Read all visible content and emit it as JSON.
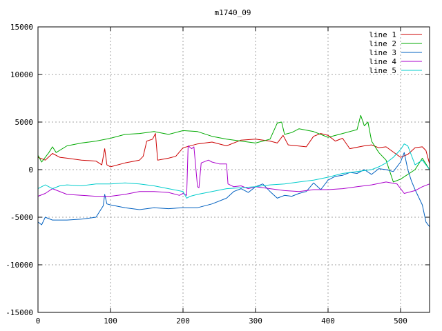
{
  "chart_data": {
    "type": "line",
    "title": "m1740_09",
    "xlabel": "",
    "ylabel": "",
    "xlim": [
      0,
      540
    ],
    "ylim": [
      -15000,
      15000
    ],
    "x_ticks": [
      0,
      100,
      200,
      300,
      400,
      500
    ],
    "y_ticks": [
      -15000,
      -10000,
      -5000,
      0,
      5000,
      10000,
      15000
    ],
    "grid": true,
    "legend_position": "top-right",
    "series": [
      {
        "name": "line 1",
        "color": "#cc0000",
        "points": [
          [
            0,
            1300
          ],
          [
            10,
            1000
          ],
          [
            20,
            1700
          ],
          [
            30,
            1300
          ],
          [
            40,
            1200
          ],
          [
            60,
            1000
          ],
          [
            80,
            900
          ],
          [
            88,
            500
          ],
          [
            92,
            2200
          ],
          [
            95,
            500
          ],
          [
            100,
            300
          ],
          [
            120,
            700
          ],
          [
            140,
            1000
          ],
          [
            145,
            1400
          ],
          [
            150,
            3000
          ],
          [
            158,
            3200
          ],
          [
            162,
            3800
          ],
          [
            165,
            1000
          ],
          [
            180,
            1200
          ],
          [
            190,
            1400
          ],
          [
            200,
            2300
          ],
          [
            220,
            2700
          ],
          [
            240,
            2900
          ],
          [
            260,
            2500
          ],
          [
            280,
            3100
          ],
          [
            300,
            3200
          ],
          [
            320,
            3000
          ],
          [
            330,
            2800
          ],
          [
            338,
            3600
          ],
          [
            345,
            2600
          ],
          [
            370,
            2400
          ],
          [
            380,
            3500
          ],
          [
            390,
            3800
          ],
          [
            400,
            3600
          ],
          [
            410,
            3000
          ],
          [
            420,
            3300
          ],
          [
            430,
            2200
          ],
          [
            450,
            2500
          ],
          [
            460,
            2600
          ],
          [
            470,
            2300
          ],
          [
            480,
            2400
          ],
          [
            500,
            1300
          ],
          [
            510,
            1600
          ],
          [
            520,
            2300
          ],
          [
            530,
            2400
          ],
          [
            535,
            2000
          ],
          [
            540,
            600
          ]
        ]
      },
      {
        "name": "line 2",
        "color": "#00aa00",
        "points": [
          [
            0,
            1500
          ],
          [
            5,
            800
          ],
          [
            15,
            1800
          ],
          [
            20,
            2400
          ],
          [
            25,
            1800
          ],
          [
            40,
            2500
          ],
          [
            60,
            2800
          ],
          [
            80,
            3000
          ],
          [
            100,
            3300
          ],
          [
            120,
            3700
          ],
          [
            140,
            3800
          ],
          [
            160,
            4000
          ],
          [
            180,
            3700
          ],
          [
            200,
            4100
          ],
          [
            220,
            4000
          ],
          [
            240,
            3500
          ],
          [
            260,
            3200
          ],
          [
            280,
            3000
          ],
          [
            300,
            2800
          ],
          [
            320,
            3200
          ],
          [
            330,
            4900
          ],
          [
            336,
            5000
          ],
          [
            340,
            3700
          ],
          [
            350,
            3900
          ],
          [
            360,
            4300
          ],
          [
            380,
            4000
          ],
          [
            400,
            3400
          ],
          [
            420,
            3800
          ],
          [
            440,
            4200
          ],
          [
            445,
            5700
          ],
          [
            450,
            4600
          ],
          [
            455,
            5000
          ],
          [
            460,
            3000
          ],
          [
            470,
            1800
          ],
          [
            480,
            1000
          ],
          [
            490,
            -1300
          ],
          [
            500,
            -1000
          ],
          [
            510,
            -500
          ],
          [
            520,
            0
          ],
          [
            530,
            1200
          ],
          [
            540,
            0
          ]
        ]
      },
      {
        "name": "line 3",
        "color": "#0060c0",
        "points": [
          [
            0,
            -5500
          ],
          [
            5,
            -5800
          ],
          [
            10,
            -5000
          ],
          [
            20,
            -5300
          ],
          [
            40,
            -5300
          ],
          [
            60,
            -5200
          ],
          [
            80,
            -5000
          ],
          [
            90,
            -3800
          ],
          [
            92,
            -2600
          ],
          [
            95,
            -3600
          ],
          [
            100,
            -3700
          ],
          [
            120,
            -4000
          ],
          [
            140,
            -4200
          ],
          [
            160,
            -4000
          ],
          [
            180,
            -4100
          ],
          [
            200,
            -4000
          ],
          [
            220,
            -4000
          ],
          [
            240,
            -3600
          ],
          [
            260,
            -3000
          ],
          [
            270,
            -2300
          ],
          [
            280,
            -2000
          ],
          [
            290,
            -2400
          ],
          [
            300,
            -1800
          ],
          [
            310,
            -1500
          ],
          [
            320,
            -2300
          ],
          [
            330,
            -3000
          ],
          [
            340,
            -2700
          ],
          [
            350,
            -2800
          ],
          [
            360,
            -2500
          ],
          [
            370,
            -2300
          ],
          [
            380,
            -1400
          ],
          [
            390,
            -2100
          ],
          [
            400,
            -1100
          ],
          [
            410,
            -700
          ],
          [
            420,
            -600
          ],
          [
            430,
            -300
          ],
          [
            440,
            -400
          ],
          [
            450,
            0
          ],
          [
            460,
            -500
          ],
          [
            470,
            100
          ],
          [
            480,
            0
          ],
          [
            490,
            -200
          ],
          [
            500,
            800
          ],
          [
            505,
            1800
          ],
          [
            510,
            0
          ],
          [
            515,
            -1200
          ],
          [
            520,
            -2100
          ],
          [
            530,
            -3700
          ],
          [
            535,
            -5500
          ],
          [
            540,
            -6000
          ]
        ]
      },
      {
        "name": "line 4",
        "color": "#aa00cc",
        "points": [
          [
            0,
            -2800
          ],
          [
            10,
            -2500
          ],
          [
            20,
            -2000
          ],
          [
            40,
            -2600
          ],
          [
            60,
            -2700
          ],
          [
            80,
            -2800
          ],
          [
            100,
            -2800
          ],
          [
            120,
            -2600
          ],
          [
            140,
            -2300
          ],
          [
            160,
            -2300
          ],
          [
            180,
            -2400
          ],
          [
            195,
            -2700
          ],
          [
            200,
            -2500
          ],
          [
            205,
            -2700
          ],
          [
            207,
            2500
          ],
          [
            212,
            2200
          ],
          [
            215,
            2400
          ],
          [
            220,
            -1800
          ],
          [
            222,
            -1900
          ],
          [
            225,
            700
          ],
          [
            235,
            1000
          ],
          [
            240,
            800
          ],
          [
            250,
            600
          ],
          [
            260,
            600
          ],
          [
            262,
            -1500
          ],
          [
            270,
            -1800
          ],
          [
            280,
            -1700
          ],
          [
            290,
            -2000
          ],
          [
            300,
            -1800
          ],
          [
            320,
            -2000
          ],
          [
            340,
            -2200
          ],
          [
            360,
            -2300
          ],
          [
            380,
            -2100
          ],
          [
            400,
            -2100
          ],
          [
            420,
            -2000
          ],
          [
            440,
            -1800
          ],
          [
            460,
            -1600
          ],
          [
            480,
            -1300
          ],
          [
            495,
            -1500
          ],
          [
            505,
            -2500
          ],
          [
            510,
            -2400
          ],
          [
            520,
            -2200
          ],
          [
            530,
            -1800
          ],
          [
            540,
            -1500
          ]
        ]
      },
      {
        "name": "line 5",
        "color": "#00cccc",
        "points": [
          [
            0,
            -2000
          ],
          [
            10,
            -1600
          ],
          [
            20,
            -2000
          ],
          [
            30,
            -1700
          ],
          [
            40,
            -1600
          ],
          [
            60,
            -1700
          ],
          [
            80,
            -1500
          ],
          [
            100,
            -1500
          ],
          [
            120,
            -1400
          ],
          [
            140,
            -1500
          ],
          [
            160,
            -1700
          ],
          [
            180,
            -2000
          ],
          [
            200,
            -2300
          ],
          [
            205,
            -3000
          ],
          [
            210,
            -2800
          ],
          [
            220,
            -2600
          ],
          [
            240,
            -2300
          ],
          [
            260,
            -2000
          ],
          [
            280,
            -1900
          ],
          [
            300,
            -1800
          ],
          [
            320,
            -1600
          ],
          [
            340,
            -1500
          ],
          [
            360,
            -1300
          ],
          [
            380,
            -1100
          ],
          [
            400,
            -800
          ],
          [
            420,
            -400
          ],
          [
            440,
            -200
          ],
          [
            460,
            0
          ],
          [
            470,
            300
          ],
          [
            480,
            700
          ],
          [
            490,
            1300
          ],
          [
            500,
            2100
          ],
          [
            505,
            2700
          ],
          [
            510,
            2500
          ],
          [
            520,
            500
          ],
          [
            530,
            1000
          ],
          [
            540,
            0
          ]
        ]
      }
    ]
  }
}
